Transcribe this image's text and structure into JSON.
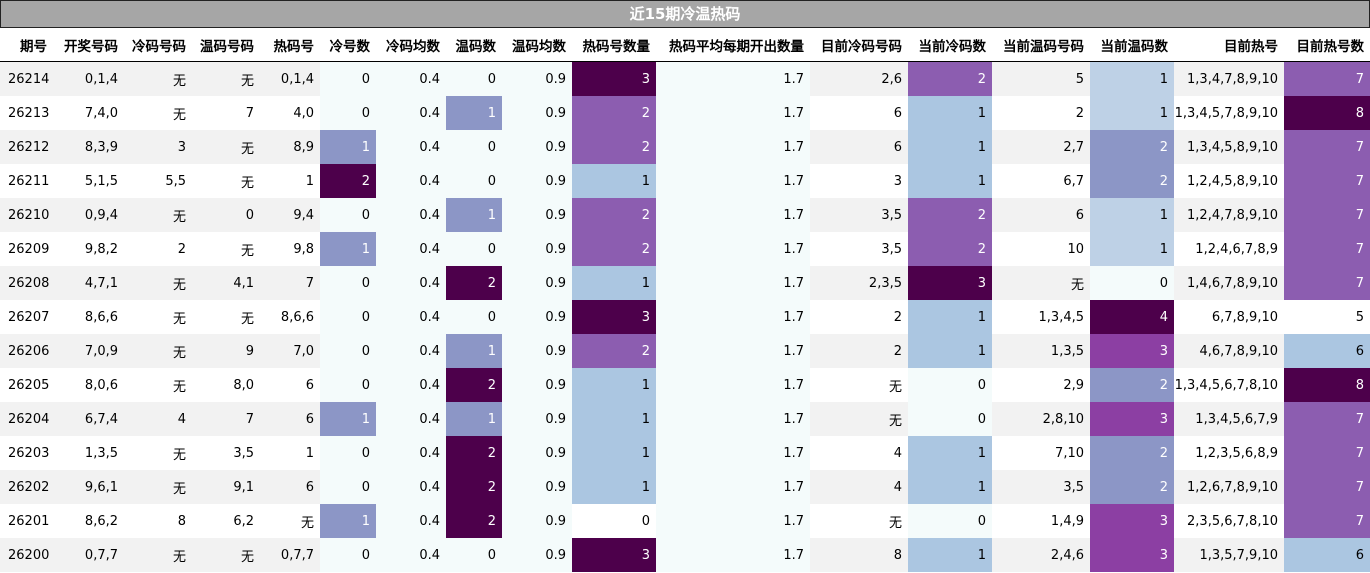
{
  "title": "近15期冷温热码",
  "columns": [
    "期号",
    "开奖号码",
    "冷码号码",
    "温码号码",
    "热码号",
    "冷号数",
    "冷码均数",
    "温码数",
    "温码均数",
    "热码号数量",
    "热码平均每期开出数量",
    "目前冷码号码",
    "当前冷码数",
    "当前温码号码",
    "当前温码数",
    "目前热号",
    "目前热号数"
  ],
  "rows": [
    [
      "26214",
      "0,1,4",
      "无",
      "无",
      "0,1,4",
      "0",
      "0.4",
      "0",
      "0.9",
      "3",
      "1.7",
      "2,6",
      "2",
      "5",
      "1",
      "1,3,4,7,8,9,10",
      "7"
    ],
    [
      "26213",
      "7,4,0",
      "无",
      "7",
      "4,0",
      "0",
      "0.4",
      "1",
      "0.9",
      "2",
      "1.7",
      "6",
      "1",
      "2",
      "1",
      "1,3,4,5,7,8,9,10",
      "8"
    ],
    [
      "26212",
      "8,3,9",
      "3",
      "无",
      "8,9",
      "1",
      "0.4",
      "0",
      "0.9",
      "2",
      "1.7",
      "6",
      "1",
      "2,7",
      "2",
      "1,3,4,5,8,9,10",
      "7"
    ],
    [
      "26211",
      "5,1,5",
      "5,5",
      "无",
      "1",
      "2",
      "0.4",
      "0",
      "0.9",
      "1",
      "1.7",
      "3",
      "1",
      "6,7",
      "2",
      "1,2,4,5,8,9,10",
      "7"
    ],
    [
      "26210",
      "0,9,4",
      "无",
      "0",
      "9,4",
      "0",
      "0.4",
      "1",
      "0.9",
      "2",
      "1.7",
      "3,5",
      "2",
      "6",
      "1",
      "1,2,4,7,8,9,10",
      "7"
    ],
    [
      "26209",
      "9,8,2",
      "2",
      "无",
      "9,8",
      "1",
      "0.4",
      "0",
      "0.9",
      "2",
      "1.7",
      "3,5",
      "2",
      "10",
      "1",
      "1,2,4,6,7,8,9",
      "7"
    ],
    [
      "26208",
      "4,7,1",
      "无",
      "4,1",
      "7",
      "0",
      "0.4",
      "2",
      "0.9",
      "1",
      "1.7",
      "2,3,5",
      "3",
      "无",
      "0",
      "1,4,6,7,8,9,10",
      "7"
    ],
    [
      "26207",
      "8,6,6",
      "无",
      "无",
      "8,6,6",
      "0",
      "0.4",
      "0",
      "0.9",
      "3",
      "1.7",
      "2",
      "1",
      "1,3,4,5",
      "4",
      "6,7,8,9,10",
      "5"
    ],
    [
      "26206",
      "7,0,9",
      "无",
      "9",
      "7,0",
      "0",
      "0.4",
      "1",
      "0.9",
      "2",
      "1.7",
      "2",
      "1",
      "1,3,5",
      "3",
      "4,6,7,8,9,10",
      "6"
    ],
    [
      "26205",
      "8,0,6",
      "无",
      "8,0",
      "6",
      "0",
      "0.4",
      "2",
      "0.9",
      "1",
      "1.7",
      "无",
      "0",
      "2,9",
      "2",
      "1,3,4,5,6,7,8,10",
      "8"
    ],
    [
      "26204",
      "6,7,4",
      "4",
      "7",
      "6",
      "1",
      "0.4",
      "1",
      "0.9",
      "1",
      "1.7",
      "无",
      "0",
      "2,8,10",
      "3",
      "1,3,4,5,6,7,9",
      "7"
    ],
    [
      "26203",
      "1,3,5",
      "无",
      "3,5",
      "1",
      "0",
      "0.4",
      "2",
      "0.9",
      "1",
      "1.7",
      "4",
      "1",
      "7,10",
      "2",
      "1,2,3,5,6,8,9",
      "7"
    ],
    [
      "26202",
      "9,6,1",
      "无",
      "9,1",
      "6",
      "0",
      "0.4",
      "2",
      "0.9",
      "1",
      "1.7",
      "4",
      "1",
      "3,5",
      "2",
      "1,2,6,7,8,9,10",
      "7"
    ],
    [
      "26201",
      "8,6,2",
      "8",
      "6,2",
      "无",
      "1",
      "0.4",
      "2",
      "0.9",
      "0",
      "1.7",
      "无",
      "0",
      "1,4,9",
      "3",
      "2,3,5,6,7,8,10",
      "7"
    ],
    [
      "26200",
      "0,7,7",
      "无",
      "无",
      "0,7,7",
      "0",
      "0.4",
      "0",
      "0.9",
      "3",
      "1.7",
      "8",
      "1",
      "2,4,6",
      "3",
      "1,3,5,7,9,10",
      "6"
    ]
  ],
  "heat_colors": {
    "cold_count": {
      "0": "",
      "1": "#8c96c6",
      "2": "#4d004b"
    },
    "warm_count": {
      "0": "",
      "1": "#8c96c6",
      "2": "#4d004b"
    },
    "hot_count": {
      "0": "",
      "1": "#abc6e1",
      "2": "#8c5db0",
      "3": "#4d004b"
    },
    "current_cold": {
      "0": "",
      "1": "#abc6e1",
      "2": "#8c5db0",
      "3": "#4d004b"
    },
    "current_warm": {
      "0": "",
      "1": "#bed1e6",
      "2": "#8c96c6",
      "3": "#8c3fa3",
      "4": "#4d004b"
    },
    "current_hot": {
      "5": "",
      "6": "#abc6e1",
      "7": "#8c5db0",
      "8": "#4d004b"
    }
  }
}
